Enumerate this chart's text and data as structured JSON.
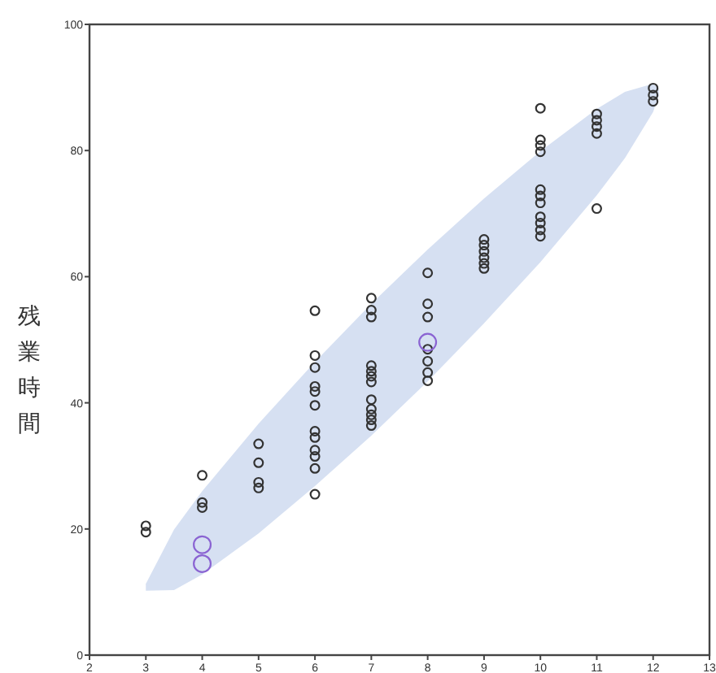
{
  "chart_data": {
    "type": "scatter",
    "ylabel": "残業時間",
    "xlim": [
      2,
      13
    ],
    "ylim": [
      0,
      100
    ],
    "xticks": [
      2,
      3,
      4,
      5,
      6,
      7,
      8,
      9,
      10,
      11,
      12,
      13
    ],
    "yticks": [
      0,
      20,
      40,
      60,
      80,
      100
    ],
    "grid": false,
    "marker": "circle",
    "series": [
      {
        "type": "area",
        "color": "#d6e0f2",
        "x": [
          3,
          3.5,
          4,
          5,
          6,
          7,
          8,
          9,
          10,
          11,
          11.5,
          12,
          12.1
        ],
        "values": [
          null,
          null,
          null,
          null,
          null,
          null,
          null,
          null,
          null,
          null,
          null,
          null,
          null
        ],
        "lower": [
          10.2,
          10.3,
          12.8,
          19.3,
          26.8,
          34.8,
          43.4,
          52.6,
          62.3,
          72.9,
          78.8,
          86.1,
          88.7
        ],
        "upper": [
          11.3,
          19.9,
          26,
          36.7,
          46.5,
          55.7,
          64.3,
          72.4,
          79.9,
          86.6,
          89.3,
          90.6,
          89.8
        ]
      },
      {
        "color": "#333333",
        "x": [
          3,
          3,
          4,
          4,
          4,
          5,
          5,
          5,
          5,
          6,
          6,
          6,
          6,
          6,
          6,
          6,
          6,
          6,
          6,
          6,
          6,
          7,
          7,
          7,
          7,
          7,
          7,
          7,
          7,
          7,
          7,
          7,
          7,
          8,
          8,
          8,
          8,
          8,
          8,
          8,
          9,
          9,
          9,
          9,
          9,
          9,
          10,
          10,
          10,
          10,
          10,
          10,
          10,
          10,
          10,
          10,
          10,
          11,
          11,
          11,
          11,
          11,
          12,
          12,
          12
        ],
        "values": [
          20.5,
          19.5,
          28.5,
          24.2,
          23.4,
          33.5,
          30.5,
          27.4,
          26.5,
          54.6,
          47.5,
          45.6,
          42.6,
          41.8,
          39.6,
          35.5,
          34.5,
          32.5,
          31.5,
          29.6,
          25.5,
          56.6,
          54.7,
          53.6,
          45.9,
          45,
          44.2,
          43.3,
          40.5,
          39,
          38.1,
          37.3,
          36.4,
          60.6,
          55.7,
          53.6,
          48.5,
          46.6,
          44.8,
          43.5,
          65.9,
          65,
          64,
          63,
          62.1,
          61.3,
          86.7,
          81.7,
          80.8,
          79.8,
          73.8,
          72.8,
          71.7,
          69.5,
          68.5,
          67.4,
          66.4,
          85.8,
          84.8,
          83.8,
          82.7,
          70.8,
          89.9,
          88.8,
          87.8
        ]
      },
      {
        "color": "#8a63d2",
        "x": [
          4,
          4,
          8
        ],
        "values": [
          17.5,
          14.5,
          49.6
        ]
      }
    ]
  }
}
